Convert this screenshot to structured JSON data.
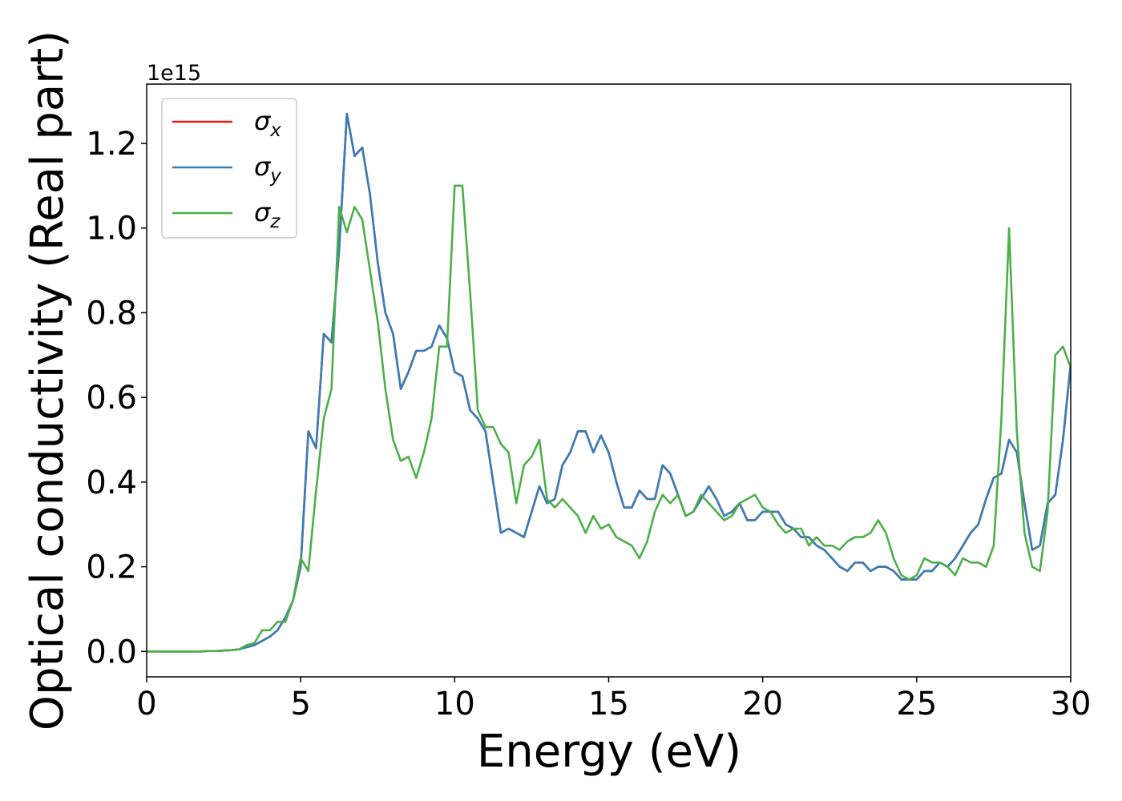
{
  "chart_data": {
    "type": "line",
    "xlabel": "Energy (eV)",
    "ylabel": "Optical conductivity (Real part)",
    "y_offset_label": "1e15",
    "xlim": [
      0,
      30
    ],
    "ylim": [
      -0.06,
      1.34
    ],
    "xticks": [
      0,
      5,
      10,
      15,
      20,
      25,
      30
    ],
    "yticks": [
      {
        "value": 0,
        "label": "0.0"
      },
      0.2,
      0.4,
      0.6,
      0.8,
      {
        "value": 1,
        "label": "1.0"
      },
      1.2
    ],
    "legend": "upper left",
    "x": [
      0,
      0.25,
      0.5,
      0.75,
      1,
      1.25,
      1.5,
      1.75,
      2,
      2.25,
      2.5,
      2.75,
      3,
      3.25,
      3.5,
      3.75,
      4,
      4.25,
      4.5,
      4.75,
      5,
      5.25,
      5.5,
      5.75,
      6,
      6.25,
      6.5,
      6.75,
      7,
      7.25,
      7.5,
      7.75,
      8,
      8.25,
      8.5,
      8.75,
      9,
      9.25,
      9.5,
      9.75,
      10,
      10.25,
      10.5,
      10.75,
      11,
      11.25,
      11.5,
      11.75,
      12,
      12.25,
      12.5,
      12.75,
      13,
      13.25,
      13.5,
      13.75,
      14,
      14.25,
      14.5,
      14.75,
      15,
      15.25,
      15.5,
      15.75,
      16,
      16.25,
      16.5,
      16.75,
      17,
      17.25,
      17.5,
      17.75,
      18,
      18.25,
      18.5,
      18.75,
      19,
      19.25,
      19.5,
      19.75,
      20,
      20.25,
      20.5,
      20.75,
      21,
      21.25,
      21.5,
      21.75,
      22,
      22.25,
      22.5,
      22.75,
      23,
      23.25,
      23.5,
      23.75,
      24,
      24.25,
      24.5,
      24.75,
      25,
      25.25,
      25.5,
      25.75,
      26,
      26.25,
      26.5,
      26.75,
      27,
      27.25,
      27.5,
      27.75,
      28,
      28.25,
      28.5,
      28.75,
      29,
      29.25,
      29.5,
      29.75,
      30
    ],
    "series": [
      {
        "name": "σx",
        "color": "#e41a1c",
        "values": [
          0,
          0,
          0,
          0,
          0,
          0,
          0,
          0,
          0.001,
          0.001,
          0.002,
          0.003,
          0.005,
          0.01,
          0.015,
          0.025,
          0.035,
          0.05,
          0.08,
          0.12,
          0.2,
          0.52,
          0.48,
          0.75,
          0.73,
          0.95,
          1.27,
          1.17,
          1.19,
          1.08,
          0.92,
          0.8,
          0.75,
          0.62,
          0.66,
          0.71,
          0.71,
          0.72,
          0.77,
          0.74,
          0.66,
          0.65,
          0.57,
          0.55,
          0.52,
          0.4,
          0.28,
          0.29,
          0.28,
          0.27,
          0.33,
          0.39,
          0.35,
          0.36,
          0.44,
          0.47,
          0.52,
          0.52,
          0.47,
          0.51,
          0.47,
          0.4,
          0.34,
          0.34,
          0.38,
          0.36,
          0.36,
          0.44,
          0.42,
          0.37,
          0.32,
          0.33,
          0.36,
          0.39,
          0.36,
          0.32,
          0.33,
          0.35,
          0.31,
          0.31,
          0.33,
          0.33,
          0.33,
          0.3,
          0.29,
          0.27,
          0.27,
          0.25,
          0.24,
          0.22,
          0.2,
          0.19,
          0.21,
          0.21,
          0.19,
          0.2,
          0.2,
          0.19,
          0.17,
          0.17,
          0.17,
          0.19,
          0.19,
          0.21,
          0.2,
          0.22,
          0.25,
          0.28,
          0.3,
          0.36,
          0.41,
          0.42,
          0.5,
          0.47,
          0.35,
          0.24,
          0.25,
          0.35,
          0.37,
          0.5,
          0.68
        ]
      },
      {
        "name": "σy",
        "color": "#377eb8",
        "values": [
          0,
          0,
          0,
          0,
          0,
          0,
          0,
          0,
          0.001,
          0.001,
          0.002,
          0.003,
          0.005,
          0.01,
          0.015,
          0.025,
          0.035,
          0.05,
          0.08,
          0.12,
          0.2,
          0.52,
          0.48,
          0.75,
          0.73,
          0.95,
          1.27,
          1.17,
          1.19,
          1.08,
          0.92,
          0.8,
          0.75,
          0.62,
          0.66,
          0.71,
          0.71,
          0.72,
          0.77,
          0.74,
          0.66,
          0.65,
          0.57,
          0.55,
          0.52,
          0.4,
          0.28,
          0.29,
          0.28,
          0.27,
          0.33,
          0.39,
          0.35,
          0.36,
          0.44,
          0.47,
          0.52,
          0.52,
          0.47,
          0.51,
          0.47,
          0.4,
          0.34,
          0.34,
          0.38,
          0.36,
          0.36,
          0.44,
          0.42,
          0.37,
          0.32,
          0.33,
          0.36,
          0.39,
          0.36,
          0.32,
          0.33,
          0.35,
          0.31,
          0.31,
          0.33,
          0.33,
          0.33,
          0.3,
          0.29,
          0.27,
          0.27,
          0.25,
          0.24,
          0.22,
          0.2,
          0.19,
          0.21,
          0.21,
          0.19,
          0.2,
          0.2,
          0.19,
          0.17,
          0.17,
          0.17,
          0.19,
          0.19,
          0.21,
          0.2,
          0.22,
          0.25,
          0.28,
          0.3,
          0.36,
          0.41,
          0.42,
          0.5,
          0.47,
          0.35,
          0.24,
          0.25,
          0.35,
          0.37,
          0.5,
          0.68
        ]
      },
      {
        "name": "σz",
        "color": "#4daf4a",
        "values": [
          0,
          0,
          0,
          0,
          0,
          0,
          0,
          0,
          0.001,
          0.001,
          0.002,
          0.003,
          0.005,
          0.015,
          0.02,
          0.05,
          0.05,
          0.07,
          0.07,
          0.12,
          0.22,
          0.19,
          0.38,
          0.55,
          0.62,
          1.05,
          0.99,
          1.05,
          1.02,
          0.9,
          0.78,
          0.62,
          0.5,
          0.45,
          0.46,
          0.41,
          0.47,
          0.55,
          0.72,
          0.72,
          1.1,
          1.1,
          0.85,
          0.57,
          0.53,
          0.53,
          0.49,
          0.47,
          0.35,
          0.44,
          0.46,
          0.5,
          0.36,
          0.34,
          0.36,
          0.34,
          0.32,
          0.28,
          0.32,
          0.29,
          0.3,
          0.27,
          0.26,
          0.25,
          0.22,
          0.26,
          0.33,
          0.37,
          0.35,
          0.37,
          0.32,
          0.33,
          0.37,
          0.35,
          0.33,
          0.31,
          0.32,
          0.35,
          0.36,
          0.37,
          0.34,
          0.33,
          0.3,
          0.28,
          0.29,
          0.29,
          0.25,
          0.27,
          0.25,
          0.25,
          0.24,
          0.26,
          0.27,
          0.27,
          0.28,
          0.31,
          0.28,
          0.22,
          0.18,
          0.17,
          0.18,
          0.22,
          0.21,
          0.21,
          0.2,
          0.18,
          0.22,
          0.21,
          0.21,
          0.2,
          0.25,
          0.55,
          1.0,
          0.52,
          0.28,
          0.2,
          0.19,
          0.33,
          0.7,
          0.72,
          0.67
        ]
      }
    ]
  }
}
